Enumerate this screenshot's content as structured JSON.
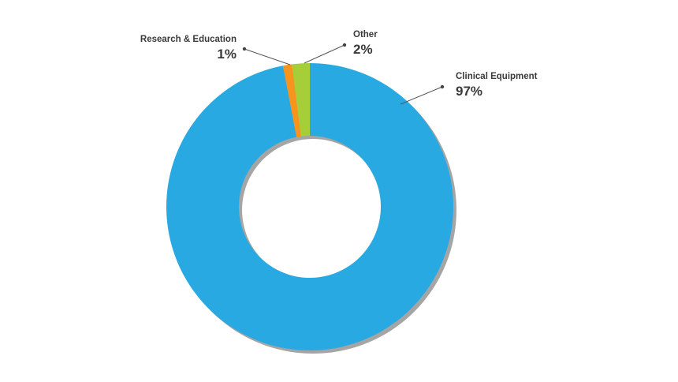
{
  "chart_data": {
    "type": "pie",
    "categories": [
      "Clinical Equipment",
      "Research & Education",
      "Other"
    ],
    "values": [
      97,
      1,
      2
    ],
    "value_labels": [
      "97%",
      "1%",
      "2%"
    ],
    "colors": [
      "#29a9e1",
      "#f7941d",
      "#a6ce39"
    ]
  }
}
